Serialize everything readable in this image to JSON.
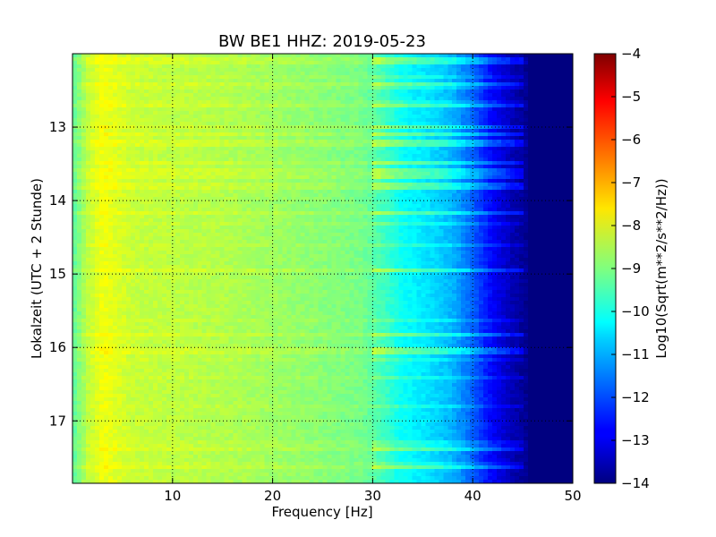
{
  "chart_data": {
    "type": "heatmap",
    "title": "BW BE1 HHZ: 2019-05-23",
    "xlabel": "Frequency [Hz]",
    "ylabel": "Lokalzeit (UTC + 2 Stunde)",
    "colorbar_label": "Log10(Sqrt(m**2/s**2/Hz))",
    "xlim": [
      0,
      50
    ],
    "ylim": [
      12.0,
      17.85
    ],
    "y_inverted": true,
    "x_ticks": [
      10,
      20,
      30,
      40,
      50
    ],
    "x_tick_labels": [
      "10",
      "20",
      "30",
      "40",
      "50"
    ],
    "y_ticks": [
      13,
      14,
      15,
      16,
      17
    ],
    "y_tick_labels": [
      "13",
      "14",
      "15",
      "16",
      "17"
    ],
    "colorbar_range": [
      -14,
      -4
    ],
    "colorbar_ticks": [
      -4,
      -5,
      -6,
      -7,
      -8,
      -9,
      -10,
      -11,
      -12,
      -13,
      -14
    ],
    "colorbar_tick_labels": [
      "−4",
      "−5",
      "−6",
      "−7",
      "−8",
      "−9",
      "−10",
      "−11",
      "−12",
      "−13",
      "−14"
    ],
    "colormap": "jet",
    "grid": true,
    "spectrum_profile": [
      {
        "freq": 0,
        "level": -9.4
      },
      {
        "freq": 1.5,
        "level": -8.4
      },
      {
        "freq": 3,
        "level": -7.9
      },
      {
        "freq": 6,
        "level": -8.3
      },
      {
        "freq": 10,
        "level": -8.4
      },
      {
        "freq": 15,
        "level": -8.5
      },
      {
        "freq": 20,
        "level": -8.7
      },
      {
        "freq": 25,
        "level": -8.9
      },
      {
        "freq": 29,
        "level": -9.1
      },
      {
        "freq": 31,
        "level": -9.6
      },
      {
        "freq": 33,
        "level": -10.2
      },
      {
        "freq": 36,
        "level": -10.6
      },
      {
        "freq": 38,
        "level": -11.0
      },
      {
        "freq": 40,
        "level": -11.8
      },
      {
        "freq": 42,
        "level": -12.8
      },
      {
        "freq": 44,
        "level": -13.5
      },
      {
        "freq": 46,
        "level": -14.0
      },
      {
        "freq": 50,
        "level": -14.0
      }
    ]
  }
}
